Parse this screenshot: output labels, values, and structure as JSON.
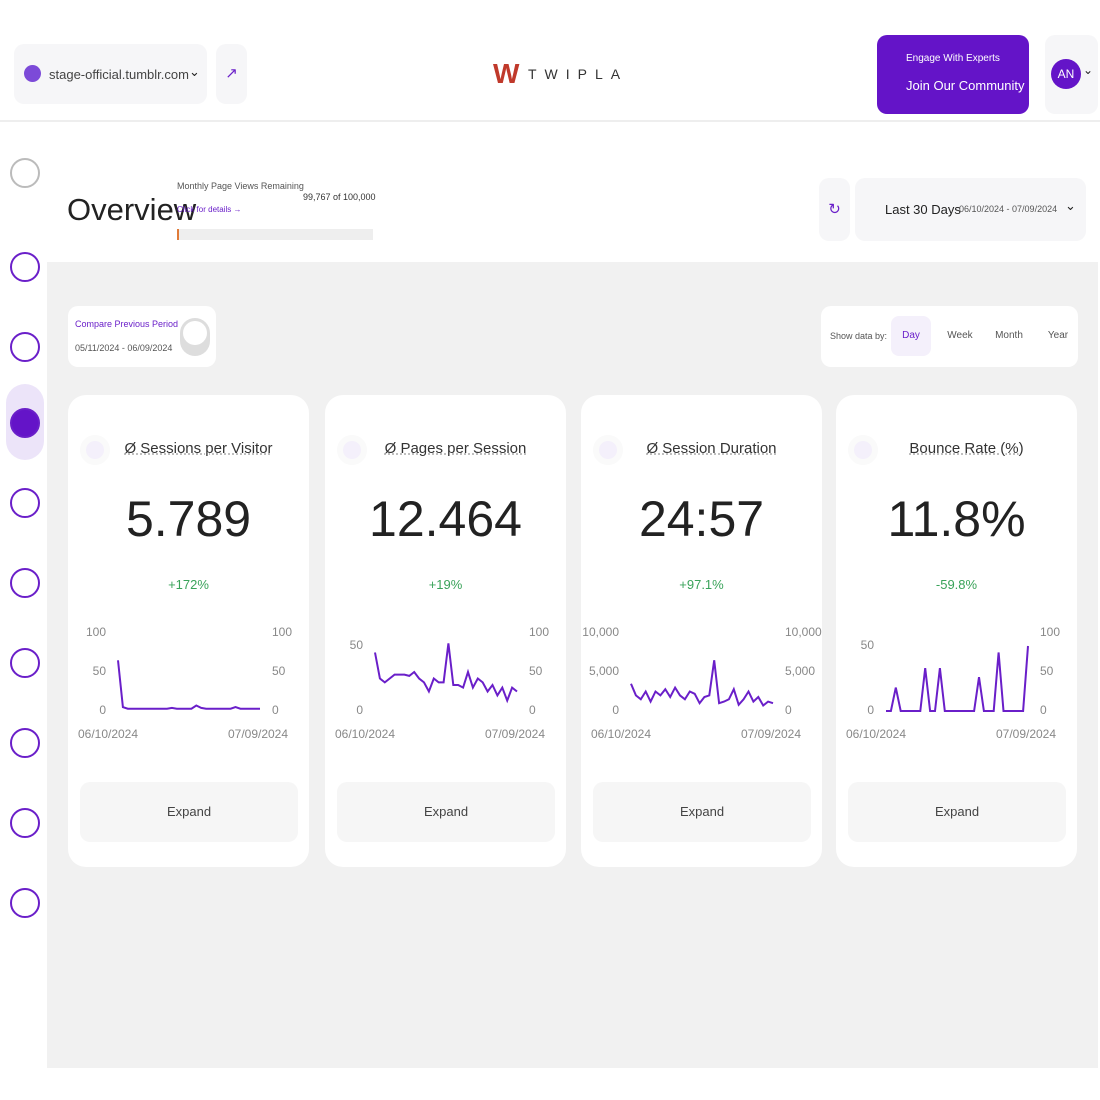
{
  "header": {
    "site": "stage-official.tumblr.com",
    "brand": "TWIPLA",
    "cta_small": "Engage With Experts",
    "cta_main": "Join Our Community",
    "avatar": "AN"
  },
  "overview": {
    "title": "Overview",
    "quota_label": "Monthly Page Views Remaining",
    "quota_link": "Click for details →",
    "quota_value": "99,767 of 100,000",
    "date_preset": "Last 30 Days",
    "date_range": "06/10/2024 - 07/09/2024"
  },
  "compare": {
    "label": "Compare Previous Period",
    "range": "05/11/2024 - 06/09/2024"
  },
  "show_by": {
    "label": "Show data by:",
    "options": [
      "Day",
      "Week",
      "Month",
      "Year"
    ],
    "active": 0
  },
  "cards": [
    {
      "title": "Ø Sessions per Visitor",
      "value": "5.789",
      "change": "+172%",
      "change_color": "#3aa35a",
      "button": "Expand",
      "chart": {
        "type": "line",
        "color": "#6a1fc9",
        "x_labels": [
          "06/10/2024",
          "07/09/2024"
        ],
        "ylim": [
          0,
          100
        ],
        "yticks": [
          0,
          50,
          100
        ],
        "y2lim": [
          0,
          100
        ],
        "y2ticks": [
          0,
          50,
          100
        ],
        "values": [
          65,
          5,
          3,
          3,
          3,
          3,
          3,
          3,
          3,
          3,
          3,
          4,
          3,
          3,
          3,
          3,
          7,
          4,
          3,
          3,
          3,
          3,
          3,
          3,
          5,
          3,
          3,
          3,
          3,
          3
        ]
      }
    },
    {
      "title": "Ø Pages per Session",
      "value": "12.464",
      "change": "+19%",
      "change_color": "#3aa35a",
      "button": "Expand",
      "chart": {
        "type": "line",
        "color": "#6a1fc9",
        "x_labels": [
          "06/10/2024",
          "07/09/2024"
        ],
        "ylim": [
          0,
          60
        ],
        "yticks": [
          0,
          50
        ],
        "y2lim": [
          0,
          100
        ],
        "y2ticks": [
          0,
          50,
          100
        ],
        "values": [
          45,
          25,
          22,
          25,
          28,
          28,
          28,
          27,
          30,
          25,
          22,
          15,
          25,
          22,
          22,
          52,
          20,
          20,
          18,
          30,
          18,
          25,
          22,
          15,
          20,
          12,
          18,
          8,
          18,
          15
        ]
      }
    },
    {
      "title": "Ø Session Duration",
      "value": "24:57",
      "change": "+97.1%",
      "change_color": "#3aa35a",
      "button": "Expand",
      "chart": {
        "type": "line",
        "color": "#6a1fc9",
        "x_labels": [
          "06/10/2024",
          "07/09/2024"
        ],
        "ylim": [
          0,
          10000
        ],
        "yticks": [
          0,
          {
            "value": 5000,
            "label": "5,000"
          },
          {
            "value": 10000,
            "label": "10,000"
          }
        ],
        "y2lim": [
          0,
          10000
        ],
        "y2ticks": [
          0,
          {
            "value": 5000,
            "label": "5,000"
          },
          {
            "value": 10000,
            "label": "10,000"
          }
        ],
        "values": [
          3500,
          2000,
          1500,
          2500,
          1200,
          2500,
          2000,
          2800,
          1800,
          3000,
          2000,
          1500,
          2500,
          2200,
          1000,
          1800,
          2000,
          6500,
          1000,
          1200,
          1500,
          2800,
          800,
          1500,
          2500,
          1200,
          1800,
          700,
          1200,
          1000
        ]
      }
    },
    {
      "title": "Bounce Rate (%)",
      "value": "11.8%",
      "change": "-59.8%",
      "change_color": "#3aa35a",
      "button": "Expand",
      "chart": {
        "type": "line",
        "color": "#6a1fc9",
        "x_labels": [
          "06/10/2024",
          "07/09/2024"
        ],
        "ylim": [
          0,
          60
        ],
        "yticks": [
          0,
          50
        ],
        "y2lim": [
          0,
          100
        ],
        "y2ticks": [
          0,
          50,
          100
        ],
        "values": [
          0,
          0,
          18,
          0,
          0,
          0,
          0,
          0,
          33,
          0,
          0,
          33,
          0,
          0,
          0,
          0,
          0,
          0,
          0,
          26,
          0,
          0,
          0,
          45,
          0,
          0,
          0,
          0,
          0,
          50
        ]
      }
    }
  ]
}
